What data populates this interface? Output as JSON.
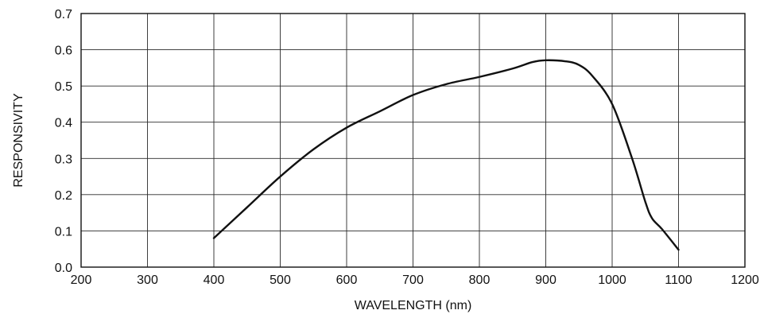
{
  "chart_data": {
    "type": "line",
    "title": "",
    "xlabel": "WAVELENGTH (nm)",
    "ylabel": "RESPONSIVITY",
    "xlim": [
      200,
      1200
    ],
    "ylim": [
      0.0,
      0.7
    ],
    "xticks": [
      200,
      300,
      400,
      500,
      600,
      700,
      800,
      900,
      1000,
      1100,
      1200
    ],
    "yticks": [
      0.0,
      0.1,
      0.2,
      0.3,
      0.4,
      0.5,
      0.6,
      0.7
    ],
    "xtick_labels": [
      "200",
      "300",
      "400",
      "500",
      "600",
      "700",
      "800",
      "900",
      "1000",
      "1100",
      "1200"
    ],
    "ytick_labels": [
      "0.0",
      "0.1",
      "0.2",
      "0.3",
      "0.4",
      "0.5",
      "0.6",
      "0.7"
    ],
    "grid": true,
    "legend": "none",
    "series": [
      {
        "color": "#111111",
        "x": [
          400,
          450,
          500,
          550,
          600,
          650,
          700,
          750,
          800,
          850,
          880,
          900,
          930,
          950,
          970,
          1000,
          1030,
          1050,
          1060,
          1075,
          1100
        ],
        "y": [
          0.08,
          0.165,
          0.25,
          0.325,
          0.385,
          0.43,
          0.475,
          0.505,
          0.525,
          0.548,
          0.566,
          0.571,
          0.568,
          0.558,
          0.528,
          0.45,
          0.3,
          0.18,
          0.135,
          0.105,
          0.048
        ]
      }
    ]
  }
}
